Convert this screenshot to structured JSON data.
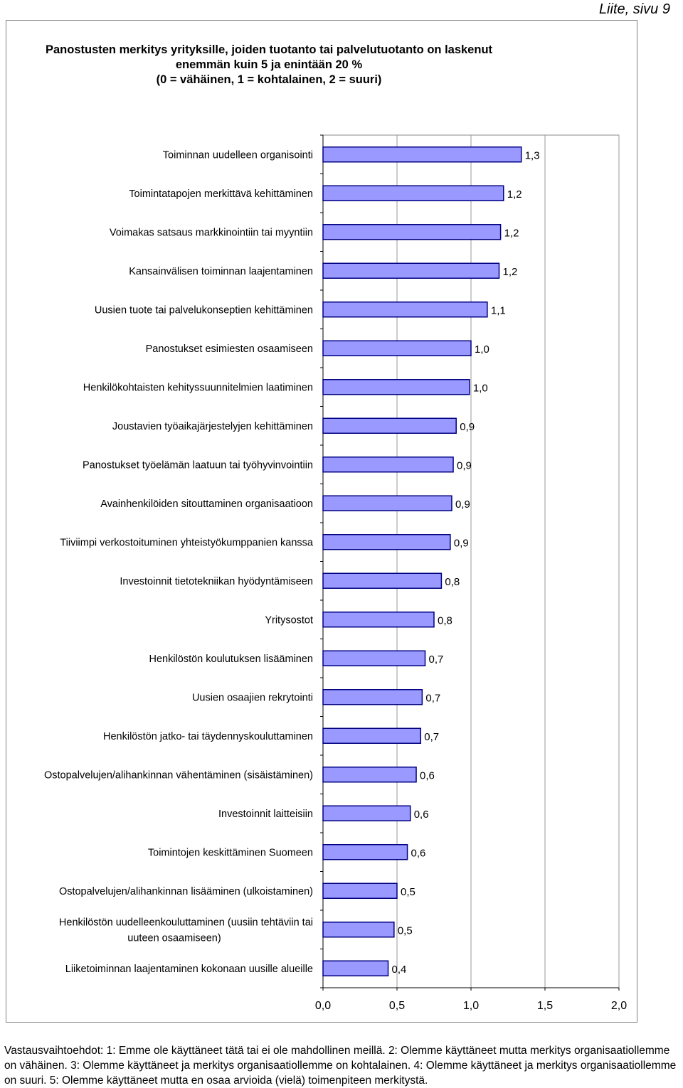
{
  "page_label": "Liite, sivu 9",
  "chart_data": {
    "type": "bar",
    "orientation": "horizontal",
    "title_lines": [
      "Panostusten merkitys yrityksille, joiden tuotanto tai palvelutuotanto on laskenut",
      "enemmän kuin 5 ja enintään 20 %",
      "(0 = vähäinen, 1 = kohtalainen, 2 = suuri)"
    ],
    "categories": [
      [
        "Toiminnan uudelleen organisointi"
      ],
      [
        "Toimintatapojen merkittävä kehittäminen"
      ],
      [
        "Voimakas satsaus markkinointiin tai myyntiin"
      ],
      [
        "Kansainvälisen toiminnan laajentaminen"
      ],
      [
        "Uusien tuote tai palvelukonseptien kehittäminen"
      ],
      [
        "Panostukset esimiesten osaamiseen"
      ],
      [
        "Henkilökohtaisten kehityssuunnitelmien laatiminen"
      ],
      [
        "Joustavien työaikajärjestelyjen kehittäminen"
      ],
      [
        "Panostukset työelämän laatuun tai työhyvinvointiin"
      ],
      [
        "Avainhenkilöiden sitouttaminen organisaatioon"
      ],
      [
        "Tiiviimpi verkostoituminen yhteistyökumppanien kanssa"
      ],
      [
        "Investoinnit tietotekniikan hyödyntämiseen"
      ],
      [
        "Yritysostot"
      ],
      [
        "Henkilöstön koulutuksen lisääminen"
      ],
      [
        "Uusien osaajien rekrytointi"
      ],
      [
        "Henkilöstön jatko- tai täydennyskouluttaminen"
      ],
      [
        "Ostopalvelujen/alihankinnan vähentäminen (sisäistäminen)"
      ],
      [
        "Investoinnit laitteisiin"
      ],
      [
        "Toimintojen keskittäminen Suomeen"
      ],
      [
        "Ostopalvelujen/alihankinnan lisääminen (ulkoistaminen)"
      ],
      [
        "Henkilöstön uudelleenkouluttaminen (uusiin tehtäviin tai",
        "uuteen osaamiseen)"
      ],
      [
        "Liiketoiminnan laajentaminen kokonaan uusille alueille"
      ]
    ],
    "values": [
      1.34,
      1.22,
      1.2,
      1.19,
      1.11,
      1.0,
      0.99,
      0.9,
      0.88,
      0.87,
      0.86,
      0.8,
      0.75,
      0.69,
      0.67,
      0.66,
      0.63,
      0.59,
      0.57,
      0.5,
      0.48,
      0.44
    ],
    "value_labels": [
      "1,3",
      "1,2",
      "1,2",
      "1,2",
      "1,1",
      "1,0",
      "1,0",
      "0,9",
      "0,9",
      "0,9",
      "0,9",
      "0,8",
      "0,8",
      "0,7",
      "0,7",
      "0,7",
      "0,6",
      "0,6",
      "0,6",
      "0,5",
      "0,5",
      "0,4"
    ],
    "xlim": [
      0,
      2
    ],
    "x_ticks": [
      0,
      0.5,
      1,
      1.5,
      2
    ],
    "x_tick_labels": [
      "0,0",
      "0,5",
      "1,0",
      "1,5",
      "2,0"
    ],
    "grid": "vertical",
    "bar_fill": "#9999ff",
    "bar_edge": "#000080",
    "grid_color": "#999999"
  },
  "footer": "Vastausvaihtoehdot: 1: Emme ole käyttäneet tätä tai ei ole mahdollinen meillä. 2: Olemme käyttäneet mutta merkitys organisaatiollemme on vähäinen. 3: Olemme käyttäneet ja merkitys organisaatiollemme on kohtalainen. 4: Olemme käyttäneet ja merkitys organisaatiollemme on suuri. 5: Olemme käyttäneet mutta en osaa arvioida (vielä) toimenpiteen merkitystä."
}
